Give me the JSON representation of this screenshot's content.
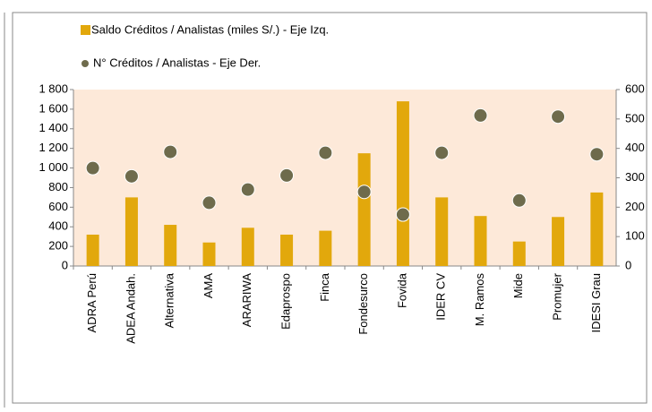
{
  "chart_data": {
    "type": "bar",
    "categories": [
      "ADRA Perú",
      "ADEA Andah.",
      "Alternativa",
      "AMA",
      "ARARIWA",
      "Edaprospo",
      "Finca",
      "Fondesurco",
      "Fovida",
      "IDER CV",
      "M. Ramos",
      "Mide",
      "Promujer",
      "IDESI Grau"
    ],
    "series": [
      {
        "name": "Saldo Créditos / Analistas (miles S/.) - Eje Izq.",
        "type": "bar",
        "color": "#e2a80c",
        "values": [
          320,
          700,
          420,
          240,
          390,
          320,
          360,
          1150,
          1680,
          700,
          510,
          250,
          500,
          750
        ]
      },
      {
        "name": "N° Créditos / Analistas - Eje Der.",
        "type": "scatter",
        "axis": "y2",
        "color": "#6e6b4c",
        "values": [
          333,
          305,
          388,
          215,
          260,
          308,
          385,
          252,
          175,
          385,
          512,
          223,
          508,
          380
        ]
      }
    ],
    "ylim": [
      0,
      1800
    ],
    "yticks": [
      0,
      200,
      400,
      600,
      800,
      {
        "value": 1000,
        "label": "1 000"
      },
      {
        "value": 1200,
        "label": "1 200"
      },
      {
        "value": 1400,
        "label": "1 400"
      },
      {
        "value": 1600,
        "label": "1 600"
      },
      {
        "value": 1800,
        "label": "1 800"
      }
    ],
    "y2lim": [
      0,
      600
    ],
    "y2ticks": [
      0,
      100,
      200,
      300,
      400,
      500,
      600
    ],
    "plot_background": "#fde9d9"
  }
}
